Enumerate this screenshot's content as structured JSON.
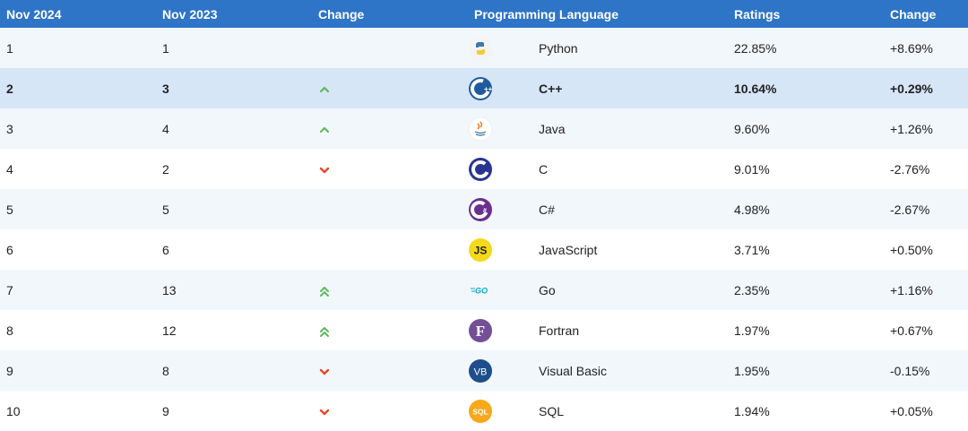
{
  "header": {
    "col1": "Nov 2024",
    "col2": "Nov 2023",
    "col3": "Change",
    "col4": "Programming Language",
    "col5": "Ratings",
    "col6": "Change"
  },
  "rows": [
    {
      "rank_2024": "1",
      "rank_2023": "1",
      "trend": "none",
      "icon": "python-logo-icon",
      "language": "Python",
      "rating": "22.85%",
      "change": "+8.69%"
    },
    {
      "rank_2024": "2",
      "rank_2023": "3",
      "trend": "up",
      "icon": "cpp-logo-icon",
      "language": "C++",
      "rating": "10.64%",
      "change": "+0.29%"
    },
    {
      "rank_2024": "3",
      "rank_2023": "4",
      "trend": "up",
      "icon": "java-logo-icon",
      "language": "Java",
      "rating": "9.60%",
      "change": "+1.26%"
    },
    {
      "rank_2024": "4",
      "rank_2023": "2",
      "trend": "down",
      "icon": "c-logo-icon",
      "language": "C",
      "rating": "9.01%",
      "change": "-2.76%"
    },
    {
      "rank_2024": "5",
      "rank_2023": "5",
      "trend": "none",
      "icon": "csharp-logo-icon",
      "language": "C#",
      "rating": "4.98%",
      "change": "-2.67%"
    },
    {
      "rank_2024": "6",
      "rank_2023": "6",
      "trend": "none",
      "icon": "javascript-logo-icon",
      "language": "JavaScript",
      "rating": "3.71%",
      "change": "+0.50%"
    },
    {
      "rank_2024": "7",
      "rank_2023": "13",
      "trend": "double-up",
      "icon": "go-logo-icon",
      "language": "Go",
      "rating": "2.35%",
      "change": "+1.16%"
    },
    {
      "rank_2024": "8",
      "rank_2023": "12",
      "trend": "double-up",
      "icon": "fortran-logo-icon",
      "language": "Fortran",
      "rating": "1.97%",
      "change": "+0.67%"
    },
    {
      "rank_2024": "9",
      "rank_2023": "8",
      "trend": "down",
      "icon": "visual-basic-logo-icon",
      "language": "Visual Basic",
      "rating": "1.95%",
      "change": "-0.15%"
    },
    {
      "rank_2024": "10",
      "rank_2023": "9",
      "trend": "down",
      "icon": "sql-logo-icon",
      "language": "SQL",
      "rating": "1.94%",
      "change": "+0.05%"
    }
  ],
  "colors": {
    "header_bg": "#2e74c7",
    "highlight_row": "#d6e6f7",
    "alt_row": "#f2f7fc",
    "up_arrow": "#5cb85c",
    "down_arrow": "#e8472b"
  }
}
